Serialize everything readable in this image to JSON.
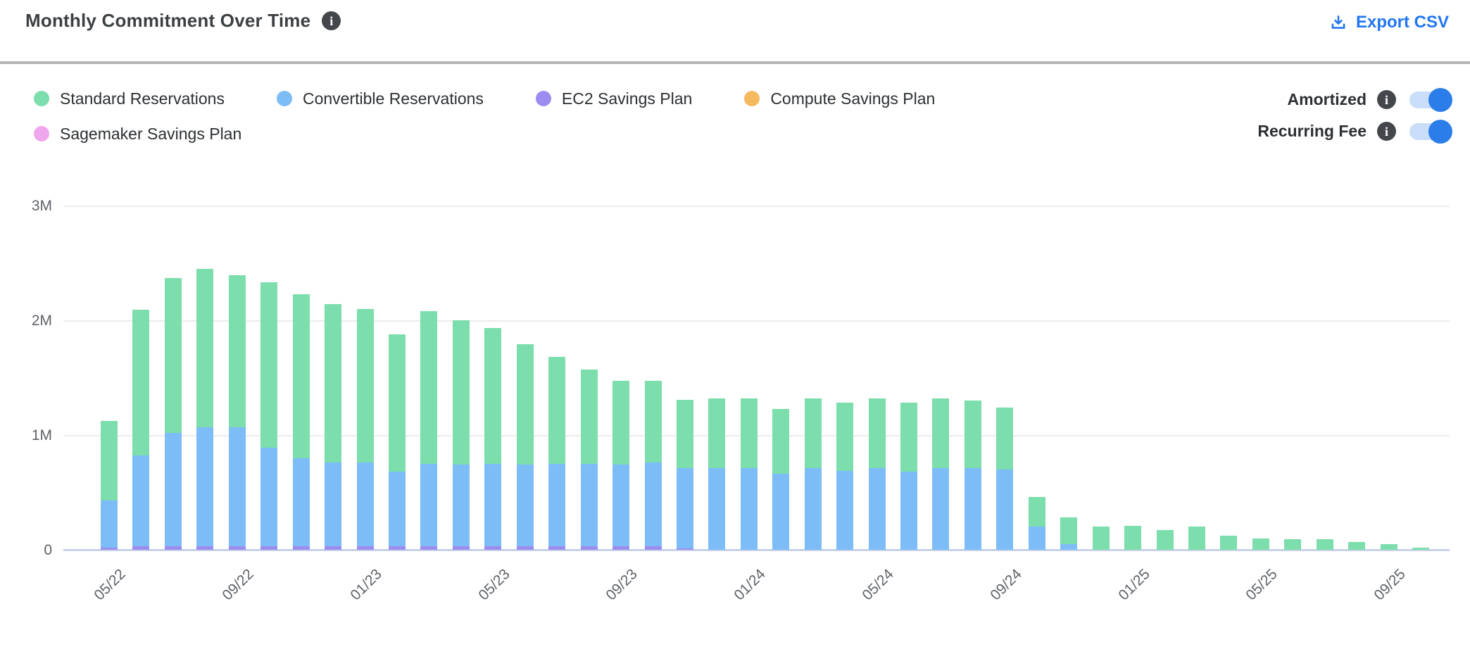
{
  "header": {
    "title": "Monthly Commitment Over Time",
    "export_label": "Export CSV"
  },
  "legend": {
    "items": [
      {
        "label": "Standard Reservations",
        "color": "#7cddad"
      },
      {
        "label": "Convertible Reservations",
        "color": "#7cbdf8"
      },
      {
        "label": "EC2 Savings Plan",
        "color": "#9d8cf0"
      },
      {
        "label": "Compute Savings Plan",
        "color": "#f5b960"
      },
      {
        "label": "Sagemaker Savings Plan",
        "color": "#f0a6ec"
      }
    ]
  },
  "toggles": [
    {
      "label": "Amortized",
      "state": "on"
    },
    {
      "label": "Recurring Fee",
      "state": "on"
    }
  ],
  "colors": {
    "accent_blue": "#2276f0",
    "toggle_track": "#c9def8",
    "toggle_knob": "#2b7de9",
    "gridline": "#ececec",
    "baseline": "#c7d1e8",
    "axis_text": "#5f6368",
    "divider": "#b5b5b5"
  },
  "chart_data": {
    "type": "bar",
    "stacked": true,
    "title": "Monthly Commitment Over Time",
    "xlabel": "",
    "ylabel": "",
    "value_unit": "millions",
    "ylim": [
      0,
      3
    ],
    "grid": true,
    "legend_position": "top-left",
    "yticks": [
      {
        "label": "3M",
        "value": 3
      },
      {
        "label": "2M",
        "value": 2
      },
      {
        "label": "1M",
        "value": 1
      },
      {
        "label": "0",
        "value": 0
      }
    ],
    "categories": [
      "05/22",
      "06/22",
      "07/22",
      "08/22",
      "09/22",
      "10/22",
      "11/22",
      "12/22",
      "01/23",
      "02/23",
      "03/23",
      "04/23",
      "05/23",
      "06/23",
      "07/23",
      "08/23",
      "09/23",
      "10/23",
      "11/23",
      "12/23",
      "01/24",
      "02/24",
      "03/24",
      "04/24",
      "05/24",
      "06/24",
      "07/24",
      "08/24",
      "09/24",
      "10/24",
      "11/24",
      "12/24",
      "01/25",
      "02/25",
      "03/25",
      "04/25",
      "05/25",
      "06/25",
      "07/25",
      "08/25",
      "09/25",
      "10/25"
    ],
    "x_tick_labels": [
      "05/22",
      "09/22",
      "01/23",
      "05/23",
      "09/23",
      "01/24",
      "05/24",
      "09/24",
      "01/25",
      "05/25",
      "09/25"
    ],
    "x_tick_every": 4,
    "stack_order_bottom_to_top": [
      "EC2 Savings Plan",
      "Convertible Reservations",
      "Standard Reservations",
      "Compute Savings Plan",
      "Sagemaker Savings Plan"
    ],
    "series": [
      {
        "name": "Standard Reservations",
        "color": "#7cddad",
        "values": [
          0.69,
          1.27,
          1.35,
          1.38,
          1.32,
          1.44,
          1.43,
          1.38,
          1.34,
          1.2,
          1.33,
          1.26,
          1.18,
          1.05,
          0.93,
          0.82,
          0.73,
          0.71,
          0.6,
          0.61,
          0.61,
          0.57,
          0.61,
          0.59,
          0.61,
          0.6,
          0.61,
          0.59,
          0.54,
          0.26,
          0.23,
          0.2,
          0.21,
          0.17,
          0.2,
          0.12,
          0.1,
          0.09,
          0.09,
          0.07,
          0.05,
          0.02
        ]
      },
      {
        "name": "Convertible Reservations",
        "color": "#7cbdf8",
        "values": [
          0.41,
          0.79,
          0.99,
          1.04,
          1.04,
          0.86,
          0.77,
          0.73,
          0.73,
          0.65,
          0.72,
          0.71,
          0.72,
          0.71,
          0.72,
          0.72,
          0.71,
          0.73,
          0.7,
          0.71,
          0.71,
          0.66,
          0.71,
          0.69,
          0.71,
          0.68,
          0.71,
          0.71,
          0.7,
          0.2,
          0.05,
          0,
          0,
          0,
          0,
          0,
          0,
          0,
          0,
          0,
          0,
          0
        ]
      },
      {
        "name": "EC2 Savings Plan",
        "color": "#9d8cf0",
        "values": [
          0.02,
          0.03,
          0.03,
          0.03,
          0.03,
          0.03,
          0.03,
          0.03,
          0.03,
          0.03,
          0.03,
          0.03,
          0.03,
          0.03,
          0.03,
          0.03,
          0.03,
          0.03,
          0.01,
          0,
          0,
          0,
          0,
          0,
          0,
          0,
          0,
          0,
          0,
          0,
          0,
          0,
          0,
          0,
          0,
          0,
          0,
          0,
          0,
          0,
          0,
          0
        ]
      },
      {
        "name": "Compute Savings Plan",
        "color": "#f5b960",
        "values": [
          0,
          0,
          0,
          0,
          0,
          0,
          0,
          0,
          0,
          0,
          0,
          0,
          0,
          0,
          0,
          0,
          0,
          0,
          0,
          0,
          0,
          0,
          0,
          0,
          0,
          0,
          0,
          0,
          0,
          0,
          0,
          0,
          0,
          0,
          0,
          0,
          0,
          0,
          0,
          0,
          0,
          0
        ]
      },
      {
        "name": "Sagemaker Savings Plan",
        "color": "#f0a6ec",
        "values": [
          0,
          0,
          0,
          0,
          0,
          0,
          0,
          0,
          0,
          0,
          0,
          0,
          0,
          0,
          0,
          0,
          0,
          0,
          0,
          0,
          0,
          0,
          0,
          0,
          0,
          0,
          0,
          0,
          0,
          0,
          0,
          0,
          0,
          0,
          0,
          0,
          0,
          0,
          0,
          0,
          0,
          0
        ]
      }
    ]
  }
}
